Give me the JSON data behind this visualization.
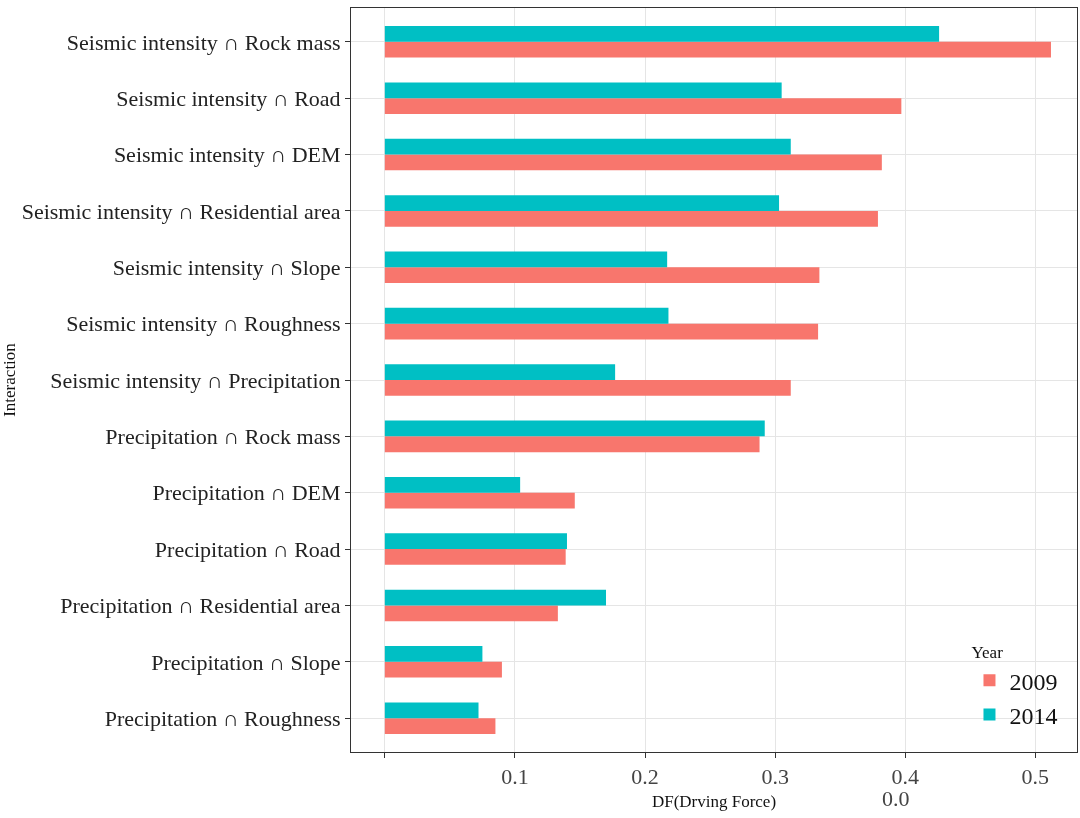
{
  "chart_data": {
    "type": "bar",
    "orientation": "horizontal",
    "xlabel": "DF(Drving Force)",
    "ylabel": "Interaction",
    "legend_title": "Year",
    "legend": "bottom right",
    "grid": true,
    "categories": [
      "Seismic intensity ∩ Rock mass",
      "Seismic intensity ∩ Road",
      "Seismic intensity ∩ DEM",
      "Seismic intensity ∩ Residential area",
      "Seismic intensity ∩ Slope",
      "Seismic intensity ∩ Roughness",
      "Seismic intensity ∩ Precipitation",
      "Precipitation ∩ Rock mass",
      "Precipitation ∩ DEM",
      "Precipitation ∩ Road",
      "Precipitation ∩ Residential area",
      "Precipitation ∩ Slope",
      "Precipitation ∩ Roughness"
    ],
    "series": [
      {
        "name": "2009",
        "color": "#f8766d",
        "values": [
          0.512,
          0.397,
          0.382,
          0.379,
          0.334,
          0.333,
          0.312,
          0.288,
          0.146,
          0.139,
          0.133,
          0.09,
          0.085
        ]
      },
      {
        "name": "2014",
        "color": "#00bfc4",
        "values": [
          0.426,
          0.305,
          0.312,
          0.303,
          0.217,
          0.218,
          0.177,
          0.292,
          0.104,
          0.14,
          0.17,
          0.075,
          0.072
        ]
      }
    ],
    "xlim": [
      -0.026,
      0.532
    ],
    "xticks": [
      {
        "value": 0,
        "label": null
      },
      0.1,
      0.2,
      0.3,
      0.4,
      0.5
    ],
    "annotations": [
      "0.0"
    ]
  }
}
